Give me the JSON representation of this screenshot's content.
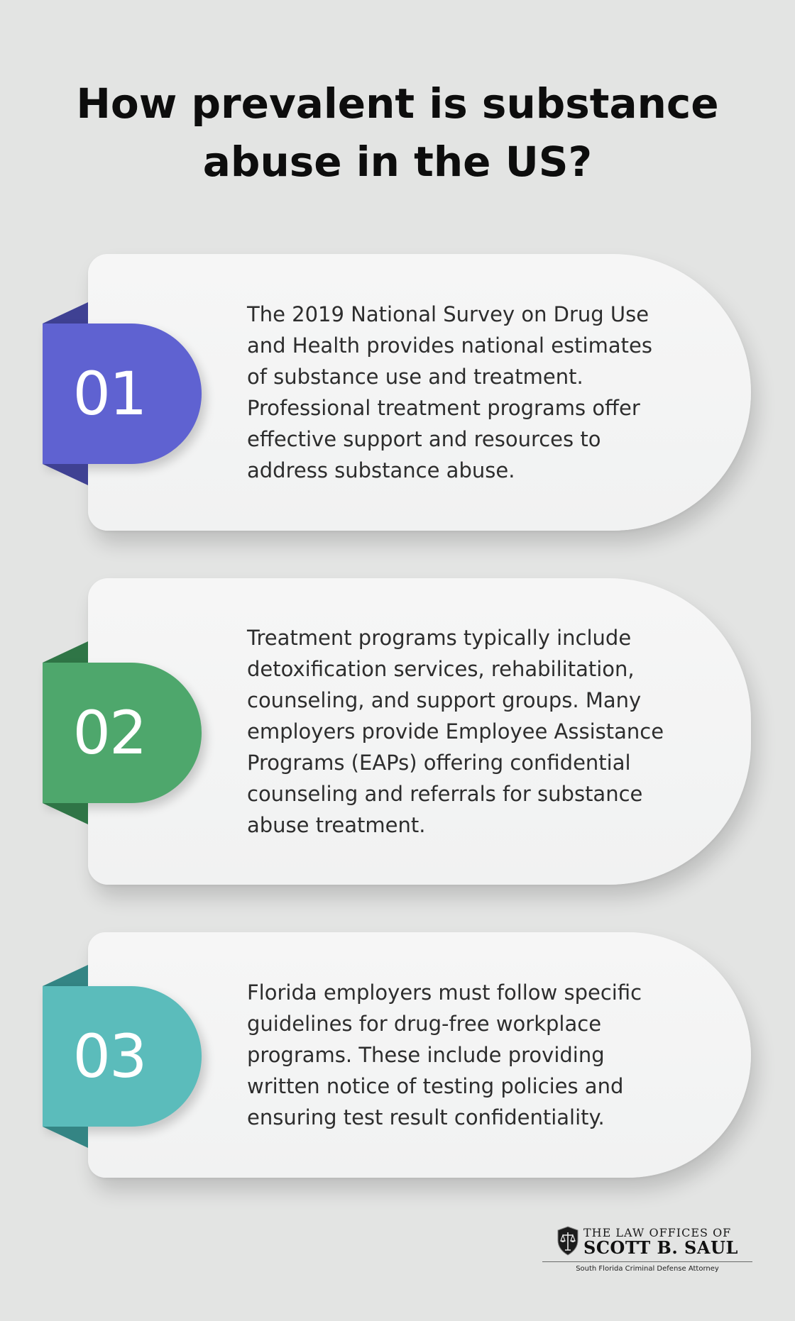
{
  "title": "How prevalent is substance abuse in the US?",
  "items": [
    {
      "number": "01",
      "color": "#5f62d1",
      "fold_color": "#3f4193",
      "text": "The 2019 National Survey on Drug Use and Health provides national estimates of substance use and treatment. Professional treatment programs offer effective support and resources to address substance abuse."
    },
    {
      "number": "02",
      "color": "#4ea76c",
      "fold_color": "#2f7546",
      "text": "Treatment programs typically include detoxification services, rehabilitation, counseling, and support groups. Many employers provide Employee Assistance Programs (EAPs) offering confidential counseling and referrals for substance abuse treatment."
    },
    {
      "number": "03",
      "color": "#5bbcbb",
      "fold_color": "#348584",
      "text": "Florida employers must follow specific guidelines for drug-free workplace programs. These include providing written notice of testing policies and ensuring test result confidentiality."
    }
  ],
  "logo": {
    "line1": "THE LAW OFFICES OF",
    "line2": "SCOTT B. SAUL",
    "tagline": "South Florida Criminal Defense Attorney",
    "icon": "scales-of-justice-shield-icon"
  }
}
